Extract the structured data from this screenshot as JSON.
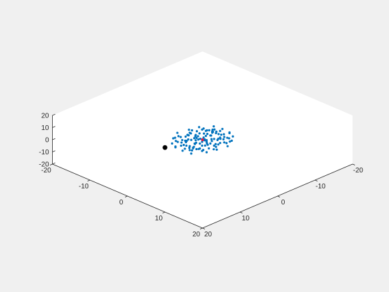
{
  "chart_data": {
    "type": "scatter",
    "view": "3d-isometric",
    "xlim": [
      -20,
      20
    ],
    "ylim": [
      -20,
      20
    ],
    "zlim": [
      -20,
      20
    ],
    "x_ticks": [
      "-20",
      "-10",
      "0",
      "10",
      "20"
    ],
    "y_ticks": [
      "-20",
      "-10",
      "0",
      "10",
      "20"
    ],
    "z_ticks": [
      "-20",
      "-10",
      "0",
      "10",
      "20"
    ],
    "grid": false,
    "title": "",
    "xlabel": "",
    "ylabel": "",
    "zlabel": "",
    "series": [
      {
        "marker": "dot",
        "color": "#0072bd",
        "points": [
          [
            0,
            0,
            0
          ],
          [
            1.2,
            -0.6,
            0.4
          ],
          [
            -1.5,
            0.9,
            -0.3
          ],
          [
            2.1,
            0.4,
            0.8
          ],
          [
            -2.4,
            -1.1,
            0.2
          ],
          [
            0.6,
            2.0,
            -0.7
          ],
          [
            -0.4,
            -2.2,
            0.5
          ],
          [
            3.0,
            -1.4,
            0.1
          ],
          [
            -3.2,
            1.5,
            -0.4
          ],
          [
            1.8,
            2.5,
            0.9
          ],
          [
            -1.9,
            -2.7,
            -0.8
          ],
          [
            3.5,
            1.0,
            -0.6
          ],
          [
            -3.6,
            -0.8,
            0.7
          ],
          [
            0.9,
            -3.1,
            1.1
          ],
          [
            -1.0,
            3.2,
            -1.0
          ],
          [
            4.1,
            -0.2,
            0.3
          ],
          [
            -4.0,
            0.3,
            -0.2
          ],
          [
            2.6,
            -2.8,
            -0.5
          ],
          [
            -2.7,
            2.9,
            0.6
          ],
          [
            0.2,
            0.8,
            1.6
          ],
          [
            -0.7,
            -0.5,
            -1.7
          ],
          [
            1.4,
            1.3,
            -1.3
          ],
          [
            -1.6,
            -1.2,
            1.4
          ],
          [
            3.8,
            2.2,
            0.2
          ],
          [
            -3.9,
            -2.1,
            -0.1
          ],
          [
            2.2,
            -3.6,
            0.4
          ],
          [
            -2.3,
            3.5,
            -0.6
          ],
          [
            4.6,
            1.2,
            -0.9
          ],
          [
            -4.5,
            -1.3,
            0.8
          ],
          [
            0.5,
            4.1,
            0.2
          ],
          [
            -0.6,
            -4.0,
            -0.3
          ],
          [
            1.1,
            -1.9,
            -1.2
          ],
          [
            -1.3,
            1.8,
            1.3
          ],
          [
            2.9,
            0.9,
            1.5
          ],
          [
            -3.0,
            -0.7,
            -1.4
          ],
          [
            3.3,
            -2.3,
            -1.0
          ],
          [
            -3.4,
            2.4,
            1.0
          ],
          [
            1.7,
            3.4,
            -0.4
          ],
          [
            -1.8,
            -3.3,
            0.3
          ],
          [
            4.9,
            -0.8,
            0.5
          ],
          [
            -4.8,
            0.9,
            -0.6
          ],
          [
            0.3,
            -0.9,
            2.1
          ],
          [
            -0.2,
            1.0,
            -2.0
          ],
          [
            2.4,
            1.7,
            -1.8
          ],
          [
            -2.5,
            -1.6,
            1.9
          ],
          [
            1.3,
            -2.4,
            2.2
          ],
          [
            -1.2,
            2.3,
            -2.1
          ],
          [
            3.7,
            0.2,
            -1.6
          ],
          [
            -3.8,
            -0.1,
            1.5
          ],
          [
            0.8,
            2.9,
            1.8
          ],
          [
            -0.9,
            -2.8,
            -1.9
          ],
          [
            5.2,
            0.5,
            0.1
          ],
          [
            -5.1,
            -0.4,
            0.0
          ],
          [
            2.0,
            -4.4,
            -0.2
          ],
          [
            -2.1,
            4.3,
            0.1
          ],
          [
            4.2,
            -2.9,
            0.7
          ],
          [
            -4.3,
            2.8,
            -0.8
          ],
          [
            3.1,
            3.3,
            0.0
          ],
          [
            -3.1,
            -3.2,
            0.1
          ],
          [
            0.0,
            -1.6,
            -0.6
          ],
          [
            0.4,
            1.5,
            0.7
          ],
          [
            1.9,
            -0.2,
            -0.9
          ],
          [
            -2.0,
            0.1,
            1.0
          ],
          [
            2.7,
            -1.1,
            2.4
          ],
          [
            -2.8,
            1.2,
            -2.3
          ],
          [
            1.5,
            0.4,
            2.7
          ],
          [
            -1.4,
            -0.3,
            -2.6
          ],
          [
            4.4,
            1.9,
            1.2
          ],
          [
            -4.4,
            -1.8,
            -1.2
          ],
          [
            0.7,
            -3.8,
            -1.5
          ],
          [
            -0.8,
            3.9,
            1.4
          ],
          [
            3.4,
            -3.9,
            1.0
          ],
          [
            -3.5,
            3.8,
            -1.1
          ],
          [
            5.6,
            -1.6,
            -0.3
          ],
          [
            -5.5,
            1.7,
            0.4
          ],
          [
            1.0,
            4.8,
            -0.5
          ],
          [
            -1.1,
            -4.7,
            0.6
          ],
          [
            2.3,
            0.0,
            -2.8
          ],
          [
            -2.4,
            0.2,
            2.9
          ],
          [
            0.1,
            2.6,
            2.5
          ],
          [
            -0.3,
            -2.5,
            -2.4
          ],
          [
            3.9,
            1.1,
            -2.2
          ],
          [
            -3.7,
            -1.0,
            2.1
          ],
          [
            1.6,
            -3.0,
            -2.6
          ],
          [
            -1.7,
            3.1,
            2.6
          ],
          [
            4.7,
            -1.9,
            1.9
          ],
          [
            -4.6,
            2.0,
            -1.8
          ],
          [
            2.8,
            2.7,
            -2.0
          ],
          [
            -2.9,
            -2.6,
            2.0
          ],
          [
            0.4,
            -0.3,
            -3.0
          ],
          [
            -0.5,
            0.4,
            3.0
          ],
          [
            6.0,
            0.7,
            -0.2
          ],
          [
            -5.9,
            -0.6,
            0.3
          ],
          [
            3.2,
            -4.6,
            -0.7
          ],
          [
            -3.3,
            4.5,
            0.8
          ],
          [
            1.2,
            0.6,
            3.2
          ],
          [
            -1.3,
            -0.7,
            -3.1
          ],
          [
            4.0,
            3.0,
            1.6
          ],
          [
            -4.1,
            -2.9,
            -1.5
          ],
          [
            2.5,
            -0.9,
            -3.2
          ],
          [
            -2.6,
            1.0,
            3.3
          ],
          [
            0.6,
            3.6,
            -2.3
          ],
          [
            -0.7,
            -3.5,
            2.2
          ],
          [
            5.0,
            0.0,
            2.3
          ],
          [
            -4.9,
            0.1,
            -2.2
          ],
          [
            1.8,
            -4.9,
            1.6
          ],
          [
            -1.9,
            4.8,
            -1.5
          ],
          [
            3.6,
            -0.6,
            3.0
          ],
          [
            -3.5,
            0.7,
            -2.9
          ],
          [
            2.0,
            1.9,
            3.4
          ],
          [
            -2.1,
            -1.8,
            -3.3
          ],
          [
            6.3,
            -0.9,
            0.9
          ],
          [
            -6.2,
            1.0,
            -0.8
          ],
          [
            0.9,
            -2.2,
            3.5
          ],
          [
            -1.0,
            2.1,
            -3.4
          ],
          [
            4.5,
            -3.6,
            -1.9
          ],
          [
            -4.4,
            3.7,
            1.8
          ],
          [
            2.9,
            4.0,
            -1.2
          ],
          [
            -3.0,
            -3.9,
            1.3
          ],
          [
            5.4,
            2.4,
            -1.1
          ],
          [
            -5.3,
            -2.3,
            1.0
          ]
        ]
      },
      {
        "marker": "dot",
        "color": "#d6204b",
        "points": [
          [
            0,
            0,
            0
          ]
        ]
      },
      {
        "marker": "dot",
        "color": "#000000",
        "points": [
          [
            8,
            -2,
            1.5
          ]
        ]
      }
    ]
  }
}
